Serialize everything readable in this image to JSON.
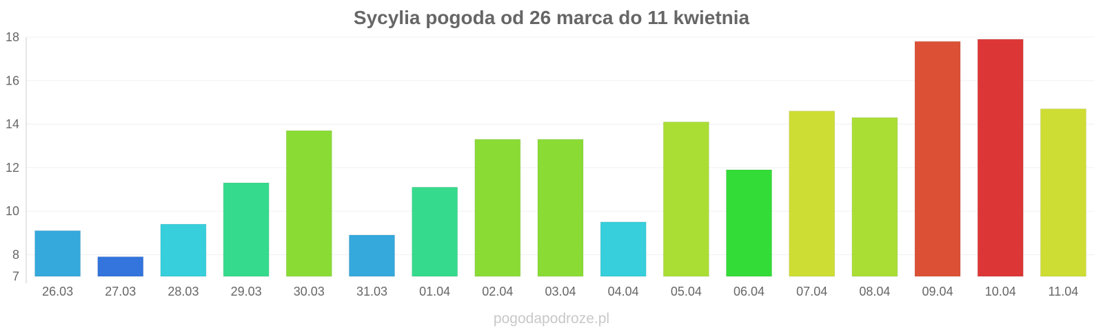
{
  "chart_data": {
    "type": "bar",
    "title": "Sycylia pogoda od 26 marca do 11 kwietnia",
    "categories": [
      "26.03",
      "27.03",
      "28.03",
      "29.03",
      "30.03",
      "31.03",
      "01.04",
      "02.04",
      "03.04",
      "04.04",
      "05.04",
      "06.04",
      "07.04",
      "08.04",
      "09.04",
      "10.04",
      "11.04"
    ],
    "values": [
      9.1,
      7.9,
      9.4,
      11.3,
      13.7,
      8.9,
      11.1,
      13.3,
      13.3,
      9.5,
      14.1,
      11.9,
      14.6,
      14.3,
      17.8,
      17.9,
      14.7
    ],
    "bar_colors": [
      "#35a8dc",
      "#3374dd",
      "#36cfdb",
      "#36da8d",
      "#8adc35",
      "#35a8dc",
      "#36da8d",
      "#8adc35",
      "#8adc35",
      "#36cfdb",
      "#aade35",
      "#33dc36",
      "#cedd33",
      "#aade35",
      "#dc5135",
      "#dc3636",
      "#cedd33"
    ],
    "ylim": [
      7,
      18
    ],
    "yticks": [
      7,
      8,
      10,
      12,
      14,
      16,
      18
    ],
    "xlabel": "",
    "ylabel": "",
    "grid": true,
    "legend": false
  },
  "watermark": "pogodapodroze.pl"
}
